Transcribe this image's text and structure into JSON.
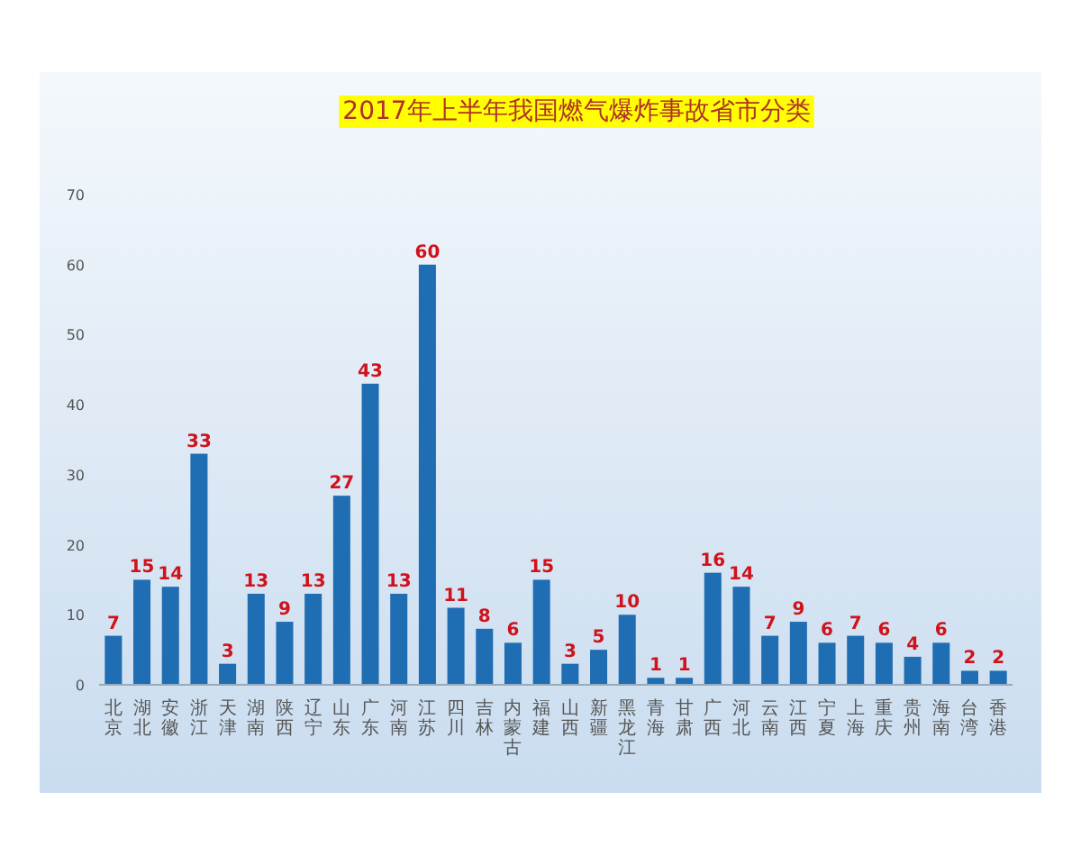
{
  "chart_data": {
    "type": "bar",
    "title": "2017年上半年我国燃气爆炸事故省市分类",
    "categories": [
      "北京",
      "湖北",
      "安徽",
      "浙江",
      "天津",
      "湖南",
      "陕西",
      "辽宁",
      "山东",
      "广东",
      "河南",
      "江苏",
      "四川",
      "吉林",
      "内蒙古",
      "福建",
      "山西",
      "新疆",
      "黑龙江",
      "青海",
      "甘肃",
      "广西",
      "河北",
      "云南",
      "江西",
      "宁夏",
      "上海",
      "重庆",
      "贵州",
      "海南",
      "台湾",
      "香港"
    ],
    "values": [
      7,
      15,
      14,
      33,
      3,
      13,
      9,
      13,
      27,
      43,
      13,
      60,
      11,
      8,
      6,
      15,
      3,
      5,
      10,
      1,
      1,
      16,
      14,
      7,
      9,
      6,
      7,
      6,
      4,
      6,
      2,
      2
    ],
    "color": "#1f6db3",
    "ylim": [
      0,
      70
    ],
    "yticks": [
      0,
      10,
      20,
      30,
      40,
      50,
      60,
      70
    ],
    "data_labels": true
  }
}
